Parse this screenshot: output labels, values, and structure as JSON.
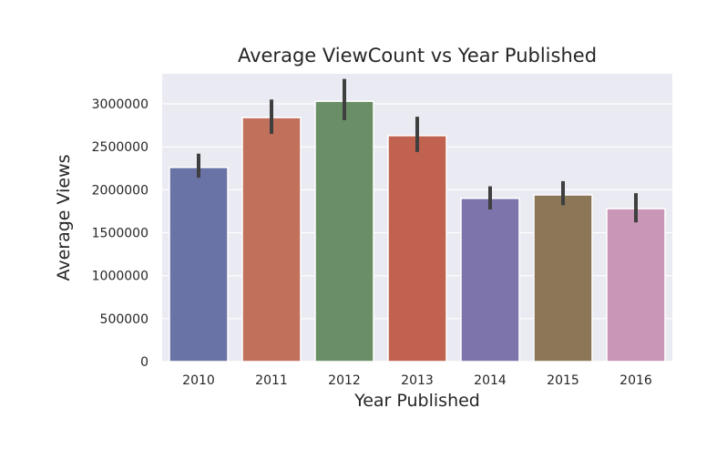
{
  "chart_data": {
    "type": "bar",
    "title": "Average ViewCount vs Year Published",
    "xlabel": "Year Published",
    "ylabel": "Average Views",
    "categories": [
      "2010",
      "2011",
      "2012",
      "2013",
      "2014",
      "2015",
      "2016"
    ],
    "values": [
      2260000,
      2840000,
      3030000,
      2630000,
      1900000,
      1940000,
      1780000
    ],
    "error_bars": [
      [
        2140000,
        2420000
      ],
      [
        2650000,
        3050000
      ],
      [
        2810000,
        3290000
      ],
      [
        2440000,
        2850000
      ],
      [
        1770000,
        2040000
      ],
      [
        1820000,
        2100000
      ],
      [
        1620000,
        1960000
      ]
    ],
    "ylim": [
      0,
      3350000
    ],
    "yticks": [
      0,
      500000,
      1000000,
      1500000,
      2000000,
      2500000,
      3000000
    ],
    "ytick_labels": [
      "0",
      "500000",
      "1000000",
      "1500000",
      "2000000",
      "2500000",
      "3000000"
    ],
    "grid": true,
    "background": "#eaeaf2",
    "bar_colors": [
      "#6a73a5",
      "#c1705b",
      "#6a8f67",
      "#c0624f",
      "#7d74ac",
      "#8b7658",
      "#c996b7"
    ],
    "error_bar_color": "#3f3f3f"
  }
}
